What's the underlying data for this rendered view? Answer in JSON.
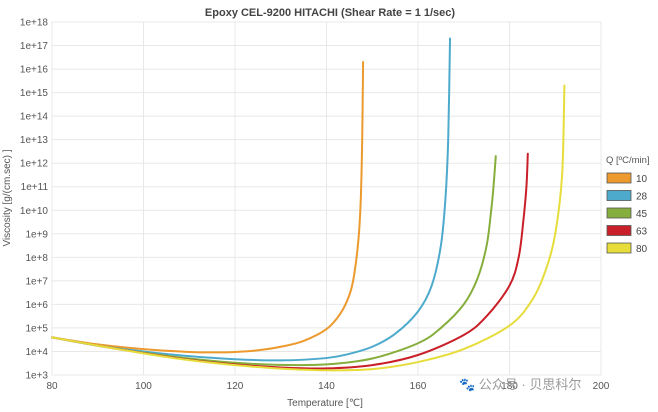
{
  "chart_data": {
    "type": "line",
    "title": "Epoxy CEL-9200 HITACHI (Shear Rate = 1 1/sec)",
    "xlabel": "Temperature [℃]",
    "ylabel": "Viscosity [g/(cm.sec) ]",
    "xlim": [
      80,
      200
    ],
    "ylim_log10": [
      3,
      18
    ],
    "y_scale": "log",
    "x_ticks": [
      80,
      100,
      120,
      140,
      160,
      180,
      200
    ],
    "x_tick_labels": [
      "80",
      "100",
      "120",
      "140",
      "160",
      "180",
      "200"
    ],
    "y_tick_labels": [
      "1e+3",
      "1e+4",
      "1e+5",
      "1e+6",
      "1e+7",
      "1e+8",
      "1e+9",
      "1e+10",
      "1e+11",
      "1e+12",
      "1e+13",
      "1e+14",
      "1e+15",
      "1e+16",
      "1e+17",
      "1e+18"
    ],
    "grid": true,
    "legend": {
      "title": "Q [ºC/min]",
      "position": "right"
    },
    "series": [
      {
        "name": "10",
        "color": "#ec9a2d",
        "points": [
          [
            80,
            4.6
          ],
          [
            90,
            4.3
          ],
          [
            100,
            4.1
          ],
          [
            110,
            3.98
          ],
          [
            115,
            3.96
          ],
          [
            120,
            3.98
          ],
          [
            125,
            4.05
          ],
          [
            130,
            4.2
          ],
          [
            135,
            4.45
          ],
          [
            140,
            4.95
          ],
          [
            143,
            5.6
          ],
          [
            145,
            6.4
          ],
          [
            146,
            7.2
          ],
          [
            147,
            8.8
          ],
          [
            147.5,
            10.5
          ],
          [
            147.8,
            13
          ],
          [
            148,
            16.3
          ]
        ]
      },
      {
        "name": "28",
        "color": "#4eaacd",
        "points": [
          [
            80,
            4.6
          ],
          [
            90,
            4.25
          ],
          [
            100,
            4.0
          ],
          [
            110,
            3.8
          ],
          [
            120,
            3.67
          ],
          [
            130,
            3.62
          ],
          [
            140,
            3.72
          ],
          [
            145,
            3.9
          ],
          [
            150,
            4.2
          ],
          [
            155,
            4.75
          ],
          [
            160,
            5.7
          ],
          [
            163,
            6.8
          ],
          [
            165,
            8.5
          ],
          [
            166,
            10.5
          ],
          [
            166.6,
            13
          ],
          [
            167,
            17.3
          ]
        ]
      },
      {
        "name": "45",
        "color": "#85ae3c",
        "points": [
          [
            80,
            4.6
          ],
          [
            90,
            4.25
          ],
          [
            100,
            3.95
          ],
          [
            110,
            3.7
          ],
          [
            120,
            3.52
          ],
          [
            130,
            3.43
          ],
          [
            140,
            3.45
          ],
          [
            150,
            3.7
          ],
          [
            160,
            4.35
          ],
          [
            165,
            5.0
          ],
          [
            170,
            6.0
          ],
          [
            173,
            7.1
          ],
          [
            175,
            8.5
          ],
          [
            176,
            10.0
          ],
          [
            176.5,
            11
          ],
          [
            177,
            12.3
          ]
        ]
      },
      {
        "name": "63",
        "color": "#c91f28",
        "points": [
          [
            80,
            4.6
          ],
          [
            90,
            4.25
          ],
          [
            100,
            3.93
          ],
          [
            110,
            3.65
          ],
          [
            120,
            3.45
          ],
          [
            130,
            3.32
          ],
          [
            140,
            3.28
          ],
          [
            150,
            3.42
          ],
          [
            160,
            3.85
          ],
          [
            170,
            4.7
          ],
          [
            175,
            5.5
          ],
          [
            180,
            6.8
          ],
          [
            182,
            8.0
          ],
          [
            183,
            9.5
          ],
          [
            183.7,
            11
          ],
          [
            184,
            12.4
          ]
        ]
      },
      {
        "name": "80",
        "color": "#e6dd3b",
        "points": [
          [
            80,
            4.6
          ],
          [
            90,
            4.25
          ],
          [
            100,
            3.92
          ],
          [
            110,
            3.63
          ],
          [
            120,
            3.42
          ],
          [
            130,
            3.27
          ],
          [
            140,
            3.2
          ],
          [
            150,
            3.25
          ],
          [
            160,
            3.55
          ],
          [
            170,
            4.1
          ],
          [
            180,
            5.1
          ],
          [
            185,
            6.2
          ],
          [
            188,
            7.5
          ],
          [
            190,
            9.0
          ],
          [
            191.5,
            11.5
          ],
          [
            192,
            15.3
          ]
        ]
      }
    ]
  },
  "watermark": "🐾 公众号 · 贝思科尔"
}
